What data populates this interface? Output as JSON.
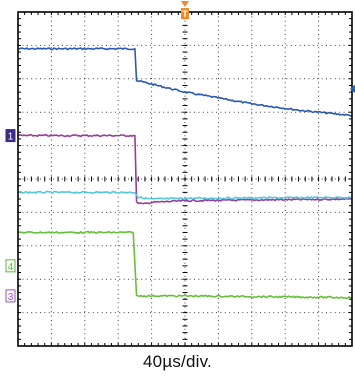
{
  "chart_data": {
    "type": "line",
    "title": "",
    "xlabel": "40µs/div.",
    "x_units": "divisions",
    "y_units": "divisions",
    "xlim": [
      0,
      10
    ],
    "ylim": [
      0,
      10
    ],
    "grid": true,
    "grid_divisions": {
      "x": 10,
      "y": 10
    },
    "trigger_marker": {
      "label": "T",
      "x": 5,
      "color": "#f08a24"
    },
    "offset_markers": [
      {
        "label": "1",
        "y": 6.3,
        "color": "#3a2a8a",
        "side": "left"
      },
      {
        "label": "4",
        "y": 2.4,
        "color": "#5cb83a",
        "side": "left"
      },
      {
        "label": "3",
        "y": 1.5,
        "color": "#a04cc0",
        "side": "left"
      },
      {
        "label": "",
        "y": 7.7,
        "color": "#2f5fa8",
        "side": "right"
      }
    ],
    "series": [
      {
        "color": "#2a5ab0",
        "x": [
          0,
          3.5,
          3.55,
          5,
          7,
          8.5,
          10
        ],
        "y": [
          8.9,
          8.9,
          7.95,
          7.6,
          7.25,
          7.05,
          6.9
        ]
      },
      {
        "color": "#9a3c9a",
        "x": [
          0,
          3.5,
          3.55,
          3.75,
          4,
          5,
          10
        ],
        "y": [
          6.3,
          6.3,
          4.3,
          4.25,
          4.3,
          4.35,
          4.4
        ]
      },
      {
        "color": "#55c8dc",
        "x": [
          0,
          3.5,
          3.6,
          4,
          5,
          10
        ],
        "y": [
          4.6,
          4.6,
          4.45,
          4.4,
          4.42,
          4.45
        ]
      },
      {
        "color": "#66c03a",
        "x": [
          0,
          3.45,
          3.55,
          5,
          10
        ],
        "y": [
          3.4,
          3.4,
          1.5,
          1.5,
          1.45
        ]
      }
    ]
  }
}
